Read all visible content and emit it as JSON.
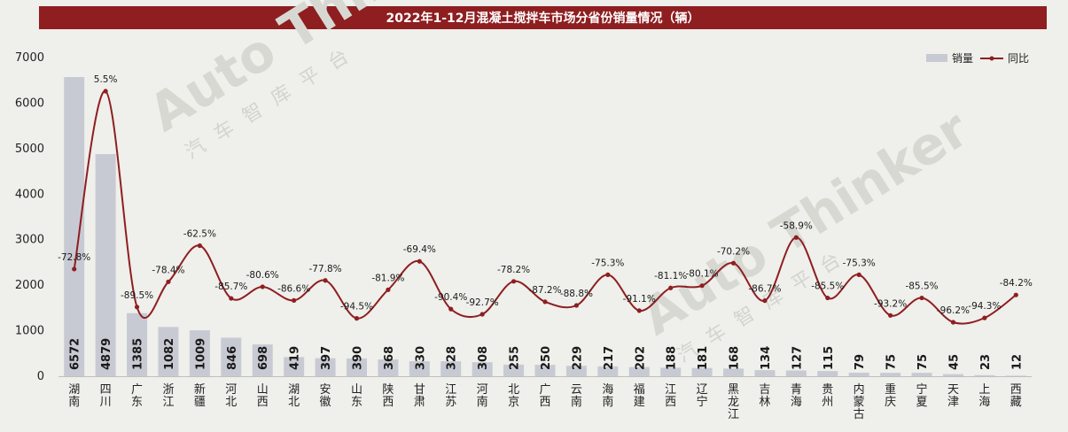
{
  "chart_data": {
    "type": "bar",
    "title": "2022年1-12月混凝土搅拌车市场分省份销量情况（辆）",
    "categories": [
      "湖南",
      "四川",
      "广东",
      "浙江",
      "新疆",
      "河北",
      "山西",
      "湖北",
      "安徽",
      "山东",
      "陕西",
      "甘肃",
      "江苏",
      "河南",
      "北京",
      "广西",
      "云南",
      "海南",
      "福建",
      "江西",
      "辽宁",
      "黑龙江",
      "吉林",
      "青海",
      "贵州",
      "内蒙古",
      "重庆",
      "宁夏",
      "天津",
      "上海",
      "西藏"
    ],
    "series": [
      {
        "name": "销量",
        "type": "bar",
        "color": "#c8cad3",
        "values": [
          6572,
          4879,
          1385,
          1082,
          1009,
          846,
          698,
          419,
          397,
          390,
          368,
          330,
          328,
          308,
          255,
          250,
          229,
          217,
          202,
          188,
          181,
          168,
          134,
          127,
          115,
          79,
          75,
          75,
          45,
          23,
          12
        ]
      },
      {
        "name": "同比",
        "type": "line",
        "color": "#8e1e20",
        "values": [
          -72.8,
          5.5,
          -89.5,
          -78.4,
          -62.5,
          -85.7,
          -80.6,
          -86.6,
          -77.8,
          -94.5,
          -81.9,
          -69.4,
          -90.4,
          -92.7,
          -78.2,
          -87.2,
          -88.8,
          -75.3,
          -91.1,
          -81.1,
          -80.1,
          -70.2,
          -86.7,
          -58.9,
          -85.5,
          -75.3,
          -93.2,
          -85.5,
          -96.2,
          -94.3,
          -84.2
        ],
        "labels": [
          "-72.8%",
          "5.5%",
          "-89.5%",
          "-78.4%",
          "-62.5%",
          "-85.7%",
          "-80.6%",
          "-86.6%",
          "-77.8%",
          "-94.5%",
          "-81.9%",
          "-69.4%",
          "-90.4%",
          "-92.7%",
          "-78.2%",
          "-87.2%",
          "-88.8%",
          "-75.3%",
          "-91.1%",
          "-81.1%",
          "-80.1%",
          "-70.2%",
          "-86.7%",
          "-58.9%",
          "-85.5%",
          "-75.3%",
          "-93.2%",
          "-85.5%",
          "-96.2%",
          "-94.3%",
          "-84.2%"
        ]
      }
    ],
    "ylim": [
      0,
      7000
    ],
    "yticks": [
      0,
      1000,
      2000,
      3000,
      4000,
      5000,
      6000,
      7000
    ],
    "legend_position": "top-right",
    "grid": false
  },
  "legend": {
    "bar_label": "销量",
    "line_label": "同比"
  },
  "watermark": {
    "text_1": "Auto Thinker",
    "text_2": "汽车智库平台"
  }
}
